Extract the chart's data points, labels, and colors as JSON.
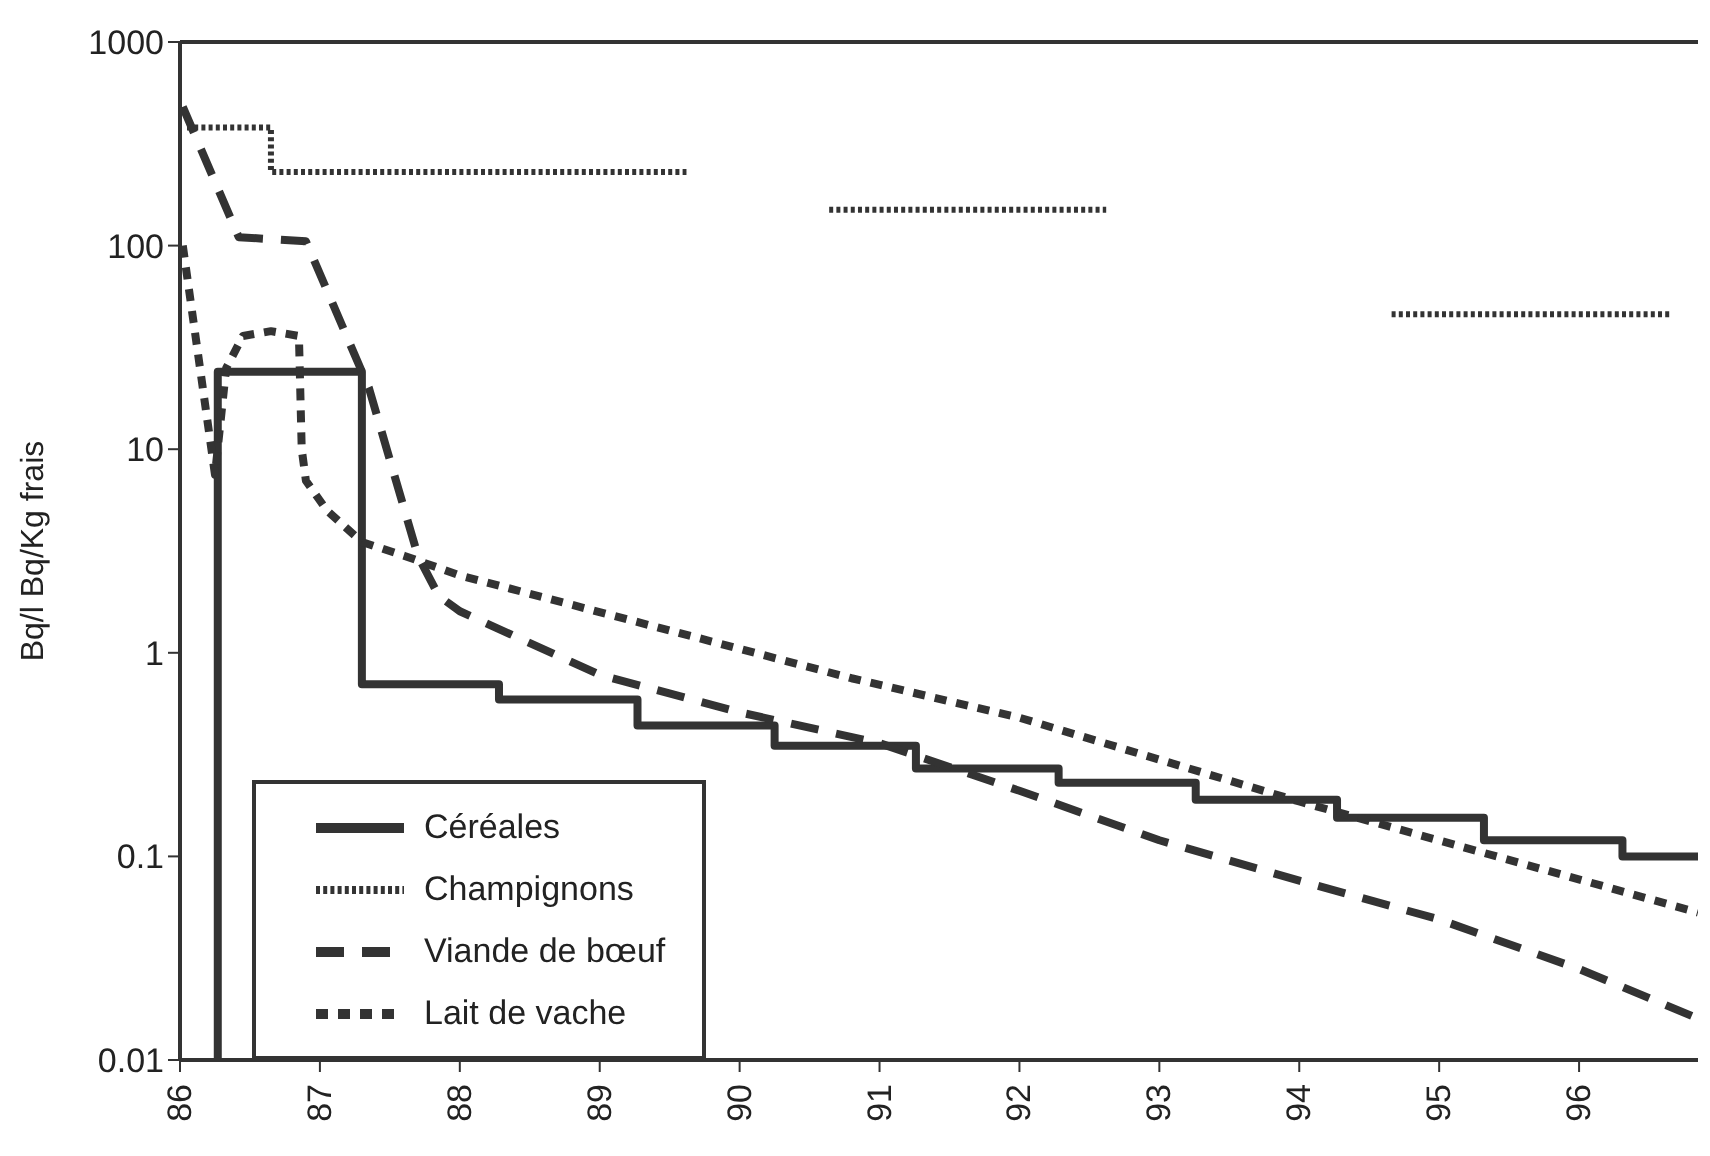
{
  "chart_data": {
    "type": "line",
    "ylabel": "Bq/l   Bq/Kg frais",
    "log": "y",
    "xlim": [
      86,
      96.85
    ],
    "xticks": [
      86,
      87,
      88,
      89,
      90,
      91,
      92,
      93,
      94,
      95,
      96
    ],
    "ylim": [
      0.01,
      1000
    ],
    "yticks": [
      0.01,
      0.1,
      1,
      10,
      100,
      1000
    ],
    "legend": "bottom left",
    "marker": "none",
    "series": [
      {
        "name": "Céréales",
        "type": "step",
        "line_style": "solid",
        "color": "#333333",
        "x": [
          86.27,
          86.27,
          87.3,
          88.28,
          89.27,
          90.25,
          91.26,
          92.28,
          93.26,
          94.27,
          95.32,
          96.31,
          96.85
        ],
        "values": [
          0.01,
          24,
          0.7,
          0.59,
          0.44,
          0.35,
          0.27,
          0.23,
          0.19,
          0.155,
          0.12,
          0.1,
          0.1
        ]
      },
      {
        "name": "Champignons",
        "type": "step",
        "line_style": "dotted",
        "color": "#333333",
        "x": [
          86.05,
          86.65,
          89.62,
          89.63,
          90.64,
          92.62,
          92.63,
          94.66,
          96.65
        ],
        "values": [
          380,
          230,
          230,
          null,
          150,
          150,
          null,
          46,
          46
        ]
      },
      {
        "name": "Viande de bœuf",
        "type": "line",
        "line_style": "dashed",
        "color": "#333333",
        "x": [
          86.02,
          86.42,
          86.9,
          87.35,
          87.7,
          87.85,
          88,
          89,
          90,
          91,
          92,
          93,
          94,
          95,
          96,
          96.85
        ],
        "values": [
          480,
          110,
          105,
          20,
          3,
          1.9,
          1.6,
          0.78,
          0.51,
          0.36,
          0.21,
          0.12,
          0.076,
          0.049,
          0.028,
          0.016
        ]
      },
      {
        "name": "Lait de vache",
        "type": "line",
        "line_style": "dotted",
        "color": "#333333",
        "x": [
          86.02,
          86.25,
          86.33,
          86.45,
          86.65,
          86.85,
          86.87,
          86.9,
          87.05,
          87.3,
          87.6,
          88,
          90.8,
          92,
          94,
          96.85
        ],
        "values": [
          100,
          7.5,
          25,
          36,
          38,
          36,
          10,
          7,
          5,
          3.5,
          3,
          2.4,
          0.75,
          0.48,
          0.186,
          0.053
        ]
      }
    ]
  }
}
